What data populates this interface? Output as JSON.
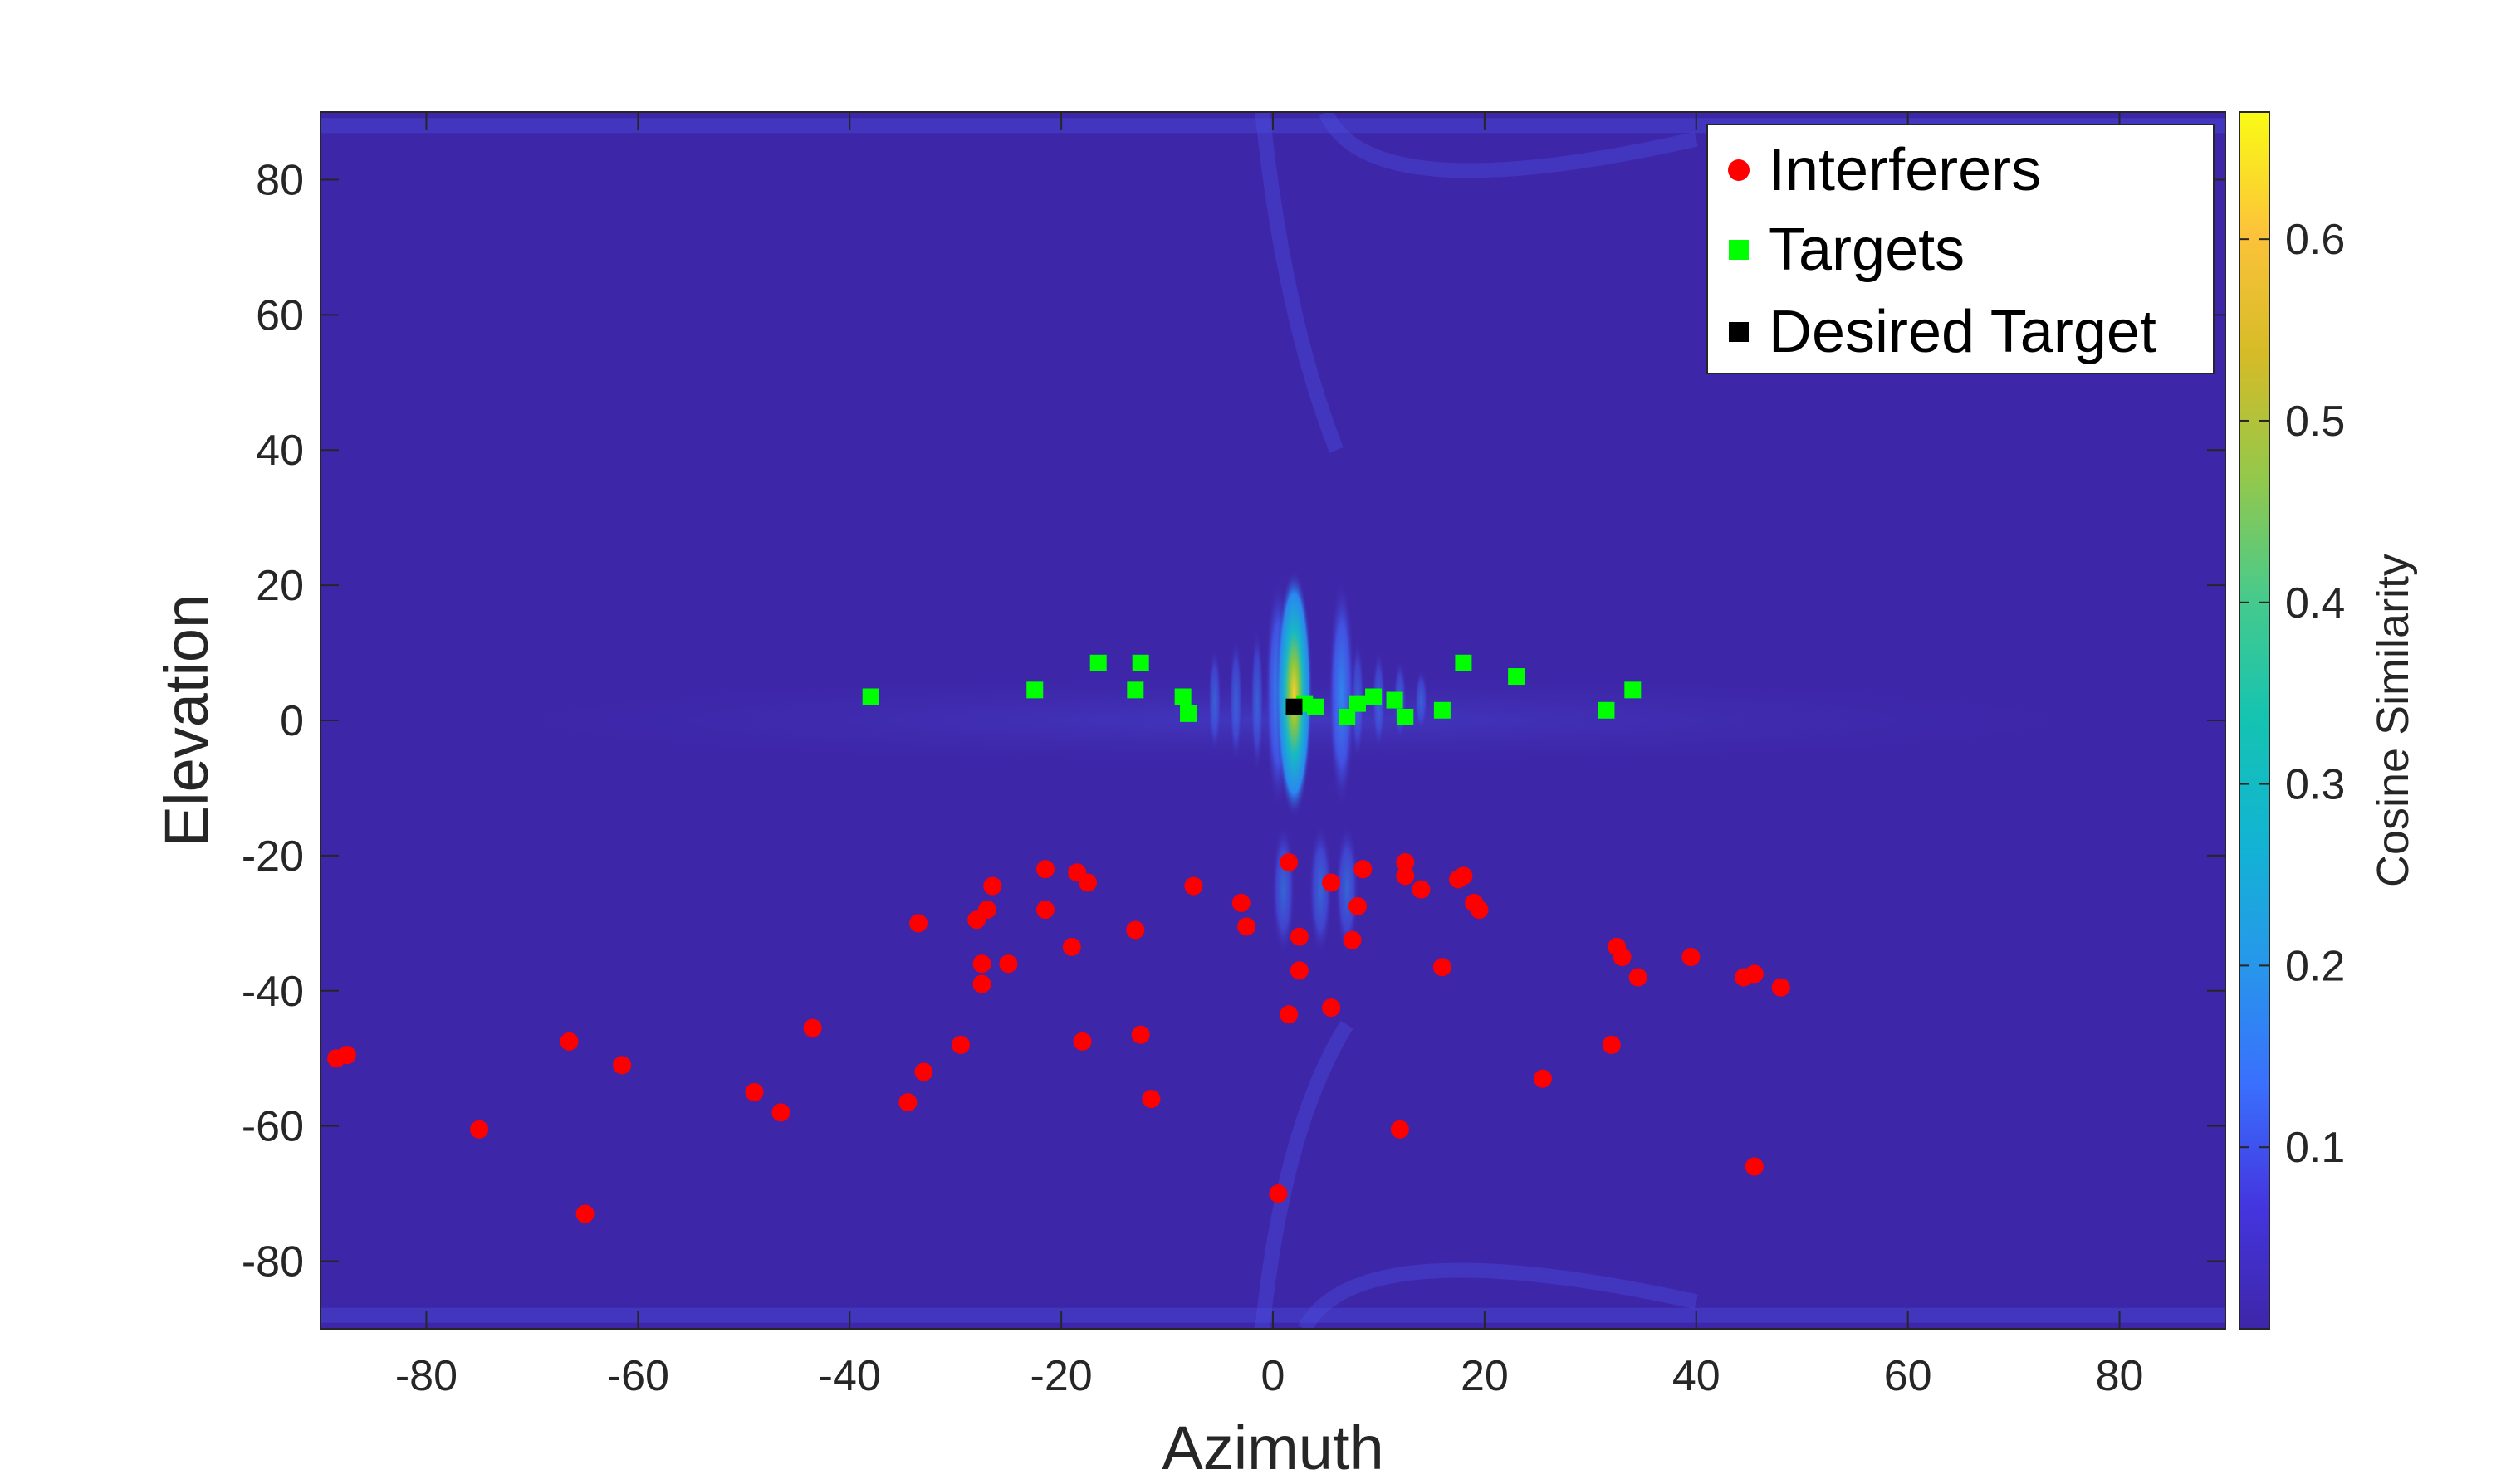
{
  "chart_data": {
    "type": "heatmap",
    "title": "",
    "xlabel": "Azimuth",
    "ylabel": "Elevation",
    "xlim": [
      -90,
      90
    ],
    "ylim": [
      -90,
      90
    ],
    "xticks": [
      -80,
      -60,
      -40,
      -20,
      0,
      20,
      40,
      60,
      80
    ],
    "yticks": [
      -80,
      -60,
      -40,
      -20,
      0,
      20,
      40,
      60,
      80
    ],
    "colorbar": {
      "label": "Cosine Similarity",
      "range": [
        0,
        0.67
      ],
      "ticks": [
        "0.1",
        "0.2",
        "0.3",
        "0.4",
        "0.5",
        "0.6"
      ],
      "tick_values": [
        0.1,
        0.2,
        0.3,
        0.4,
        0.5,
        0.6
      ],
      "colormap": "parula",
      "background_color": "#3e26a8"
    },
    "peak": {
      "x": 2,
      "y": 3,
      "value": 0.66
    },
    "legend": {
      "position": "top-right",
      "entries": [
        {
          "label": "Interferers",
          "marker": "circle",
          "color": "#ff0000"
        },
        {
          "label": "Targets",
          "marker": "square",
          "color": "#00ff00"
        },
        {
          "label": "Desired Target",
          "marker": "square",
          "color": "#000000"
        }
      ]
    },
    "series": [
      {
        "name": "Interferers",
        "marker": "circle",
        "color": "#ff0000",
        "points": [
          [
            -88.5,
            -50
          ],
          [
            -87.5,
            -49.5
          ],
          [
            -75,
            -60.5
          ],
          [
            -66.5,
            -47.5
          ],
          [
            -65,
            -73
          ],
          [
            -61.5,
            -51
          ],
          [
            -49,
            -55
          ],
          [
            -46.5,
            -58
          ],
          [
            -43.5,
            -45.5
          ],
          [
            -34.5,
            -56.5
          ],
          [
            -33.5,
            -30
          ],
          [
            -33,
            -52
          ],
          [
            -29.5,
            -48
          ],
          [
            -28,
            -29.5
          ],
          [
            -27.5,
            -36
          ],
          [
            -27.5,
            -39
          ],
          [
            -27,
            -28
          ],
          [
            -26.5,
            -24.5
          ],
          [
            -25,
            -36
          ],
          [
            -21.5,
            -22
          ],
          [
            -21.5,
            -28
          ],
          [
            -19,
            -33.5
          ],
          [
            -18.5,
            -22.5
          ],
          [
            -18,
            -47.5
          ],
          [
            -17.5,
            -24
          ],
          [
            -13,
            -31
          ],
          [
            -12.5,
            -46.5
          ],
          [
            -11.5,
            -56
          ],
          [
            -7.5,
            -24.5
          ],
          [
            -3,
            -27
          ],
          [
            -2.5,
            -30.5
          ],
          [
            0.5,
            -70
          ],
          [
            1.5,
            -43.5
          ],
          [
            1.5,
            -21
          ],
          [
            2.5,
            -32
          ],
          [
            2.5,
            -37
          ],
          [
            5.5,
            -42.5
          ],
          [
            5.5,
            -24
          ],
          [
            7.5,
            -32.5
          ],
          [
            8,
            -27.5
          ],
          [
            8.5,
            -22
          ],
          [
            12,
            -60.5
          ],
          [
            12.5,
            -23
          ],
          [
            12.5,
            -21
          ],
          [
            14,
            -25
          ],
          [
            16,
            -36.5
          ],
          [
            17.5,
            -23.5
          ],
          [
            18,
            -23
          ],
          [
            19,
            -27
          ],
          [
            19.5,
            -28
          ],
          [
            25.5,
            -53
          ],
          [
            32,
            -48
          ],
          [
            32.5,
            -33.5
          ],
          [
            33,
            -35
          ],
          [
            34.5,
            -38
          ],
          [
            39.5,
            -35
          ],
          [
            44.5,
            -38
          ],
          [
            45.5,
            -37.5
          ],
          [
            45.5,
            -66
          ],
          [
            48,
            -39.5
          ]
        ]
      },
      {
        "name": "Targets",
        "marker": "square",
        "color": "#00ff00",
        "points": [
          [
            -38,
            3.5
          ],
          [
            -22.5,
            4.5
          ],
          [
            -16.5,
            8.5
          ],
          [
            -13,
            4.5
          ],
          [
            -12.5,
            8.5
          ],
          [
            -8.5,
            3.5
          ],
          [
            -8,
            1
          ],
          [
            3,
            2.5
          ],
          [
            4,
            2
          ],
          [
            7,
            0.5
          ],
          [
            8,
            2.5
          ],
          [
            9.5,
            3.5
          ],
          [
            11.5,
            3
          ],
          [
            12.5,
            0.5
          ],
          [
            16,
            1.5
          ],
          [
            18,
            8.5
          ],
          [
            23,
            6.5
          ],
          [
            31.5,
            1.5
          ],
          [
            34,
            4.5
          ]
        ]
      },
      {
        "name": "Desired Target",
        "marker": "square",
        "color": "#000000",
        "points": [
          [
            2,
            2
          ]
        ]
      }
    ]
  }
}
